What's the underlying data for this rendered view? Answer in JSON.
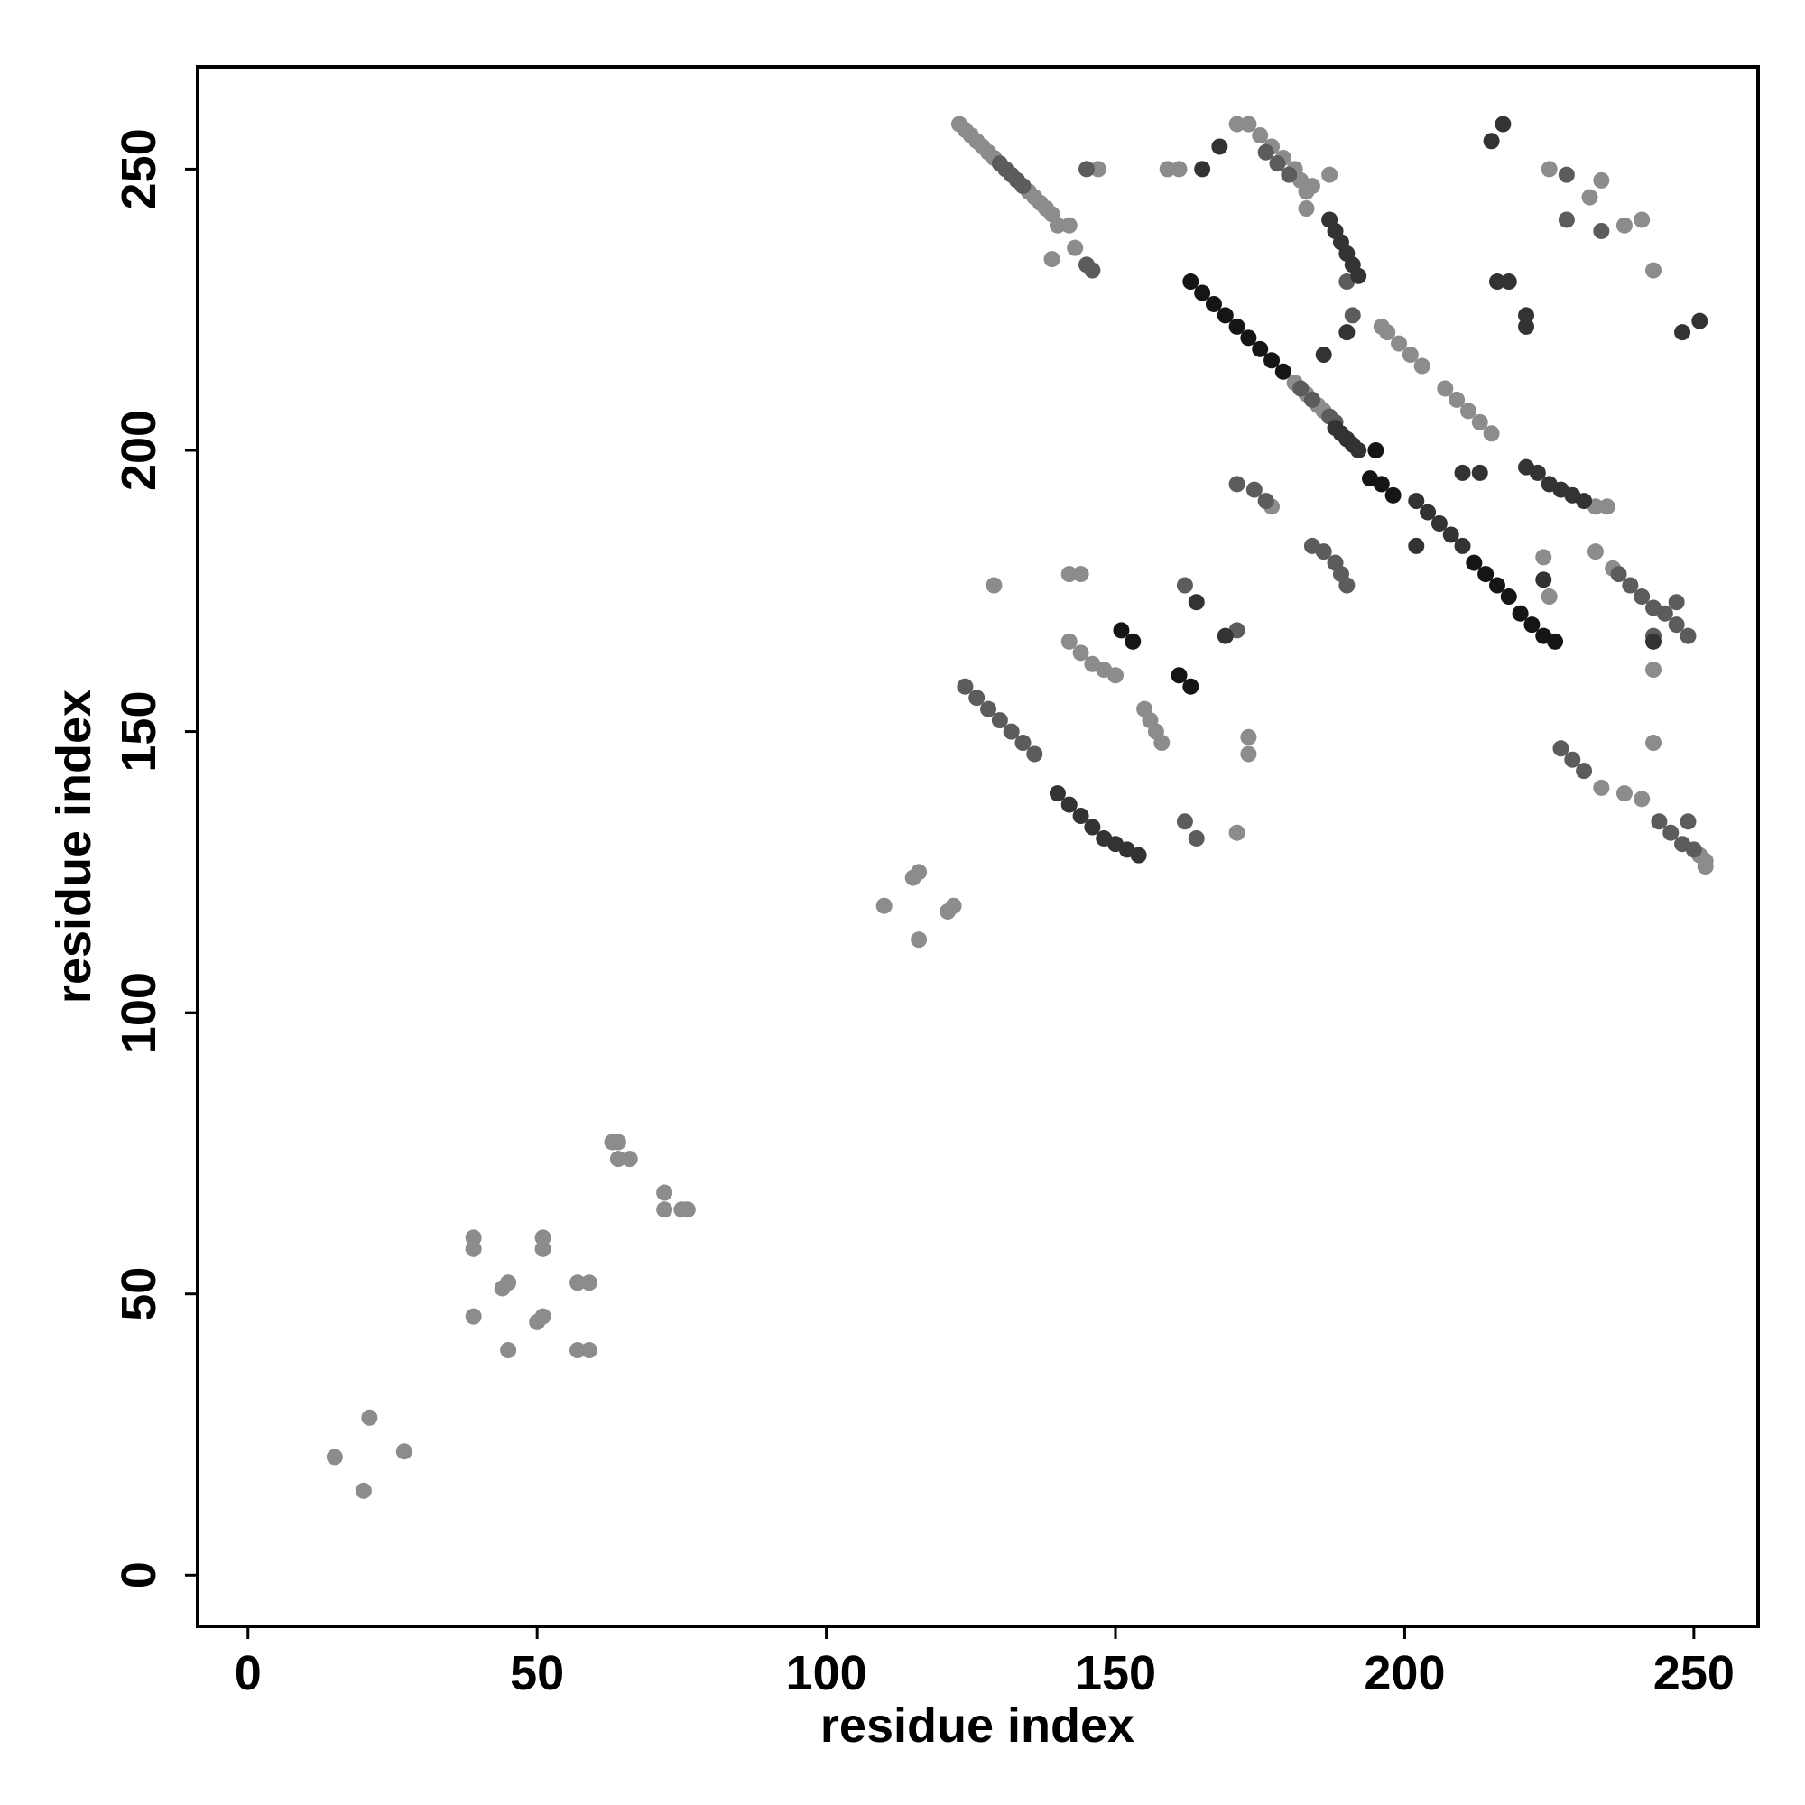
{
  "chart_data": {
    "type": "scatter",
    "xlabel": "residue index",
    "ylabel": "residue index",
    "xlim": [
      -8.7,
      261.1
    ],
    "ylim": [
      -9.1,
      268.2
    ],
    "xticks": [
      0,
      50,
      100,
      150,
      200,
      250
    ],
    "yticks": [
      0,
      50,
      100,
      150,
      200,
      250
    ],
    "grid": false,
    "series": [
      {
        "color": "#8c8c8c",
        "x": [
          15,
          20,
          21,
          27,
          39,
          39,
          39,
          44,
          45,
          45,
          50,
          51,
          51,
          51,
          57,
          59,
          57,
          59,
          63,
          64,
          64,
          66,
          72,
          72,
          75,
          76,
          110,
          115,
          116,
          116,
          121,
          122,
          123,
          124,
          125,
          126,
          127,
          128,
          129,
          135,
          136,
          137,
          138,
          139,
          140,
          142,
          143,
          139,
          147,
          159,
          161,
          171,
          173,
          175,
          177,
          179,
          181,
          182,
          183,
          183,
          181,
          183,
          185,
          186,
          196,
          197,
          199,
          201,
          203,
          207,
          209,
          211,
          213,
          215,
          233,
          235,
          233,
          236,
          234,
          238,
          241,
          251,
          252,
          252,
          129,
          142,
          144,
          142,
          144,
          146,
          148,
          150,
          155,
          156,
          157,
          158,
          173,
          173,
          171,
          177,
          184,
          187,
          225,
          234,
          232,
          238,
          241,
          243,
          243,
          243,
          224,
          225
        ],
        "values": [
          21,
          15,
          28,
          22,
          60,
          58,
          46,
          51,
          52,
          40,
          45,
          46,
          60,
          58,
          52,
          52,
          40,
          40,
          77,
          77,
          74,
          74,
          68,
          65,
          65,
          65,
          119,
          124,
          125,
          113,
          118,
          119,
          258,
          257,
          256,
          255,
          254,
          253,
          252,
          246,
          245,
          244,
          243,
          242,
          240,
          240,
          236,
          234,
          250,
          250,
          250,
          258,
          258,
          256,
          254,
          252,
          250,
          248,
          246,
          243,
          212,
          210,
          208,
          207,
          222,
          221,
          219,
          217,
          215,
          211,
          209,
          207,
          205,
          203,
          190,
          190,
          182,
          179,
          140,
          139,
          138,
          128,
          127,
          126,
          176,
          178,
          178,
          166,
          164,
          162,
          161,
          160,
          154,
          152,
          150,
          148,
          149,
          146,
          132,
          190,
          247,
          249,
          250,
          248,
          245,
          240,
          241,
          232,
          161,
          148,
          181,
          174
        ]
      },
      {
        "color": "#5c5c5c",
        "x": [
          130,
          131,
          132,
          133,
          134,
          145,
          145,
          146,
          176,
          178,
          180,
          182,
          184,
          187,
          188,
          237,
          239,
          241,
          243,
          245,
          247,
          249,
          227,
          229,
          231,
          244,
          246,
          248,
          250,
          124,
          126,
          128,
          130,
          132,
          134,
          136,
          162,
          171,
          162,
          164,
          171,
          174,
          176,
          184,
          186,
          188,
          189,
          190,
          228,
          234,
          228,
          243,
          249,
          247,
          190,
          191
        ],
        "values": [
          251,
          250,
          249,
          248,
          247,
          250,
          233,
          232,
          253,
          251,
          249,
          211,
          209,
          206,
          205,
          178,
          176,
          174,
          172,
          171,
          169,
          167,
          147,
          145,
          143,
          134,
          132,
          130,
          129,
          158,
          156,
          154,
          152,
          150,
          148,
          146,
          176,
          168,
          134,
          131,
          194,
          193,
          191,
          183,
          182,
          180,
          178,
          176,
          249,
          239,
          241,
          167,
          134,
          173,
          230,
          224
        ]
      },
      {
        "color": "#333333",
        "x": [
          168,
          165,
          187,
          188,
          189,
          190,
          191,
          192,
          188,
          189,
          190,
          191,
          192,
          202,
          204,
          206,
          208,
          210,
          221,
          223,
          225,
          227,
          229,
          231,
          140,
          142,
          144,
          146,
          148,
          150,
          152,
          154,
          164,
          169,
          216,
          218,
          221,
          221,
          215,
          217,
          248,
          251,
          186,
          190,
          202,
          210,
          213,
          224,
          243
        ],
        "values": [
          254,
          250,
          241,
          239,
          237,
          235,
          233,
          231,
          204,
          203,
          202,
          201,
          200,
          191,
          189,
          187,
          185,
          183,
          197,
          196,
          194,
          193,
          192,
          191,
          139,
          137,
          135,
          133,
          131,
          130,
          129,
          128,
          173,
          167,
          230,
          230,
          224,
          222,
          255,
          258,
          221,
          223,
          217,
          221,
          183,
          196,
          196,
          177,
          166
        ]
      },
      {
        "color": "#151515",
        "x": [
          163,
          165,
          167,
          169,
          171,
          173,
          175,
          177,
          179,
          194,
          196,
          198,
          212,
          214,
          216,
          218,
          220,
          222,
          224,
          226,
          151,
          153,
          161,
          163,
          195
        ],
        "values": [
          230,
          228,
          226,
          224,
          222,
          220,
          218,
          216,
          214,
          195,
          194,
          192,
          180,
          178,
          176,
          174,
          171,
          169,
          167,
          166,
          168,
          166,
          160,
          158,
          200
        ]
      }
    ]
  }
}
